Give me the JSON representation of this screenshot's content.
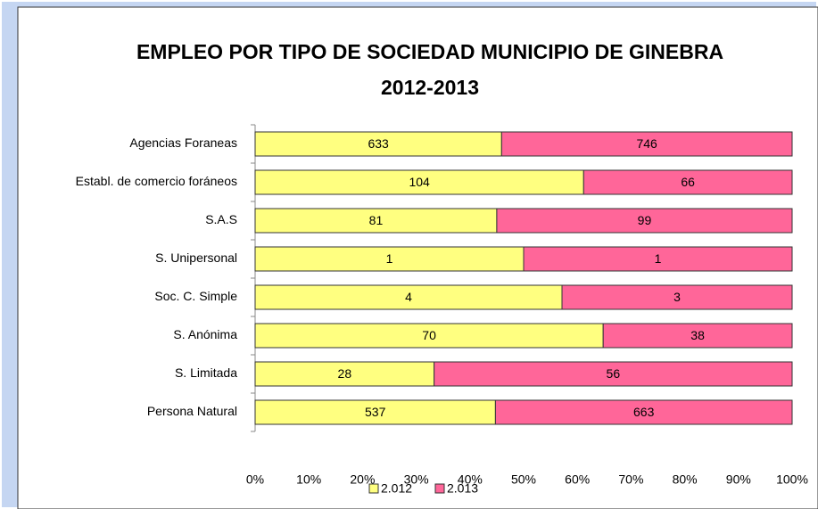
{
  "chart_data": {
    "type": "bar",
    "orientation": "horizontal",
    "stacking": "percent",
    "title": "EMPLEO POR TIPO DE SOCIEDAD MUNICIPIO DE GINEBRA 2012-2013",
    "categories": [
      "Agencias Foraneas",
      "Establ. de comercio foráneos",
      "S.A.S",
      "S. Unipersonal",
      "Soc. C. Simple",
      "S. Anónima",
      "S. Limitada",
      "Persona Natural"
    ],
    "series": [
      {
        "name": "2.012",
        "color": "#ffff80",
        "values": [
          633,
          104,
          81,
          1,
          4,
          70,
          28,
          537
        ]
      },
      {
        "name": "2.013",
        "color": "#ff6699",
        "values": [
          746,
          66,
          99,
          1,
          3,
          38,
          56,
          663
        ]
      }
    ],
    "xlim": [
      0,
      100
    ],
    "xticks": [
      {
        "value": 0,
        "label": "0%"
      },
      {
        "value": 10,
        "label": "10%"
      },
      {
        "value": 20,
        "label": "20%"
      },
      {
        "value": 30,
        "label": "30%"
      },
      {
        "value": 40,
        "label": "40%"
      },
      {
        "value": 50,
        "label": "50%"
      },
      {
        "value": 60,
        "label": "60%"
      },
      {
        "value": 70,
        "label": "70%"
      },
      {
        "value": 80,
        "label": "80%"
      },
      {
        "value": 90,
        "label": "90%"
      },
      {
        "value": 100,
        "label": "100%"
      }
    ],
    "grid": false,
    "legend": "bottom"
  }
}
